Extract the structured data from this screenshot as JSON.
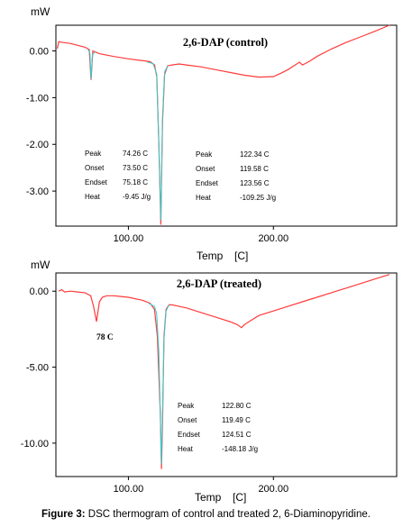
{
  "figure": {
    "caption_label": "Figure 3:",
    "caption_text": " DSC thermogram of control and treated 2, 6-Diaminopyridine.",
    "colors": {
      "trace": "#ff3b3b",
      "baseline": "#33cccc",
      "axis": "#000000"
    }
  },
  "chart_data": [
    {
      "type": "line",
      "title": "2,6-DAP (control)",
      "xlabel": "Temp",
      "xunit": "[C]",
      "ylabel": "mW",
      "xlim": [
        50,
        285
      ],
      "ylim": [
        -3.75,
        0.55
      ],
      "xticks": [
        {
          "value": 100,
          "label": "100.00"
        },
        {
          "value": 200,
          "label": "200.00"
        }
      ],
      "yticks": [
        {
          "value": 0,
          "label": "0.00"
        },
        {
          "value": -1,
          "label": "-1.00"
        },
        {
          "value": -2,
          "label": "-2.00"
        },
        {
          "value": -3,
          "label": "-3.00"
        }
      ],
      "series": [
        {
          "role": "trace",
          "x": [
            51,
            52,
            55,
            60,
            65,
            70,
            73,
            74.26,
            75.5,
            77,
            80,
            90,
            100,
            110,
            115,
            118,
            119.58,
            121,
            122.34,
            123.56,
            125,
            127,
            130,
            135,
            140,
            150,
            160,
            170,
            180,
            190,
            200,
            205,
            210,
            215,
            218,
            220,
            222,
            225,
            230,
            240,
            250,
            260,
            270,
            280
          ],
          "y": [
            0.05,
            0.2,
            0.18,
            0.16,
            0.12,
            0.08,
            0.03,
            -0.62,
            0.0,
            -0.02,
            -0.06,
            -0.12,
            -0.17,
            -0.21,
            -0.23,
            -0.3,
            -0.55,
            -2.0,
            -3.72,
            -1.5,
            -0.5,
            -0.32,
            -0.3,
            -0.28,
            -0.3,
            -0.34,
            -0.4,
            -0.46,
            -0.52,
            -0.56,
            -0.55,
            -0.48,
            -0.4,
            -0.3,
            -0.24,
            -0.3,
            -0.27,
            -0.22,
            -0.12,
            0.04,
            0.18,
            0.3,
            0.42,
            0.55
          ]
        },
        {
          "role": "baseline",
          "x": [
            72,
            73.5,
            74.26,
            75.18,
            77
          ],
          "y": [
            0.04,
            -0.05,
            -0.6,
            -0.08,
            -0.02
          ]
        },
        {
          "role": "baseline",
          "x": [
            113,
            117,
            119.58,
            121,
            122.34,
            123.56,
            125,
            127
          ],
          "y": [
            -0.24,
            -0.27,
            -0.5,
            -2.0,
            -3.62,
            -1.4,
            -0.45,
            -0.32
          ]
        }
      ],
      "annotations": [
        {
          "x": 74.26,
          "labels": [
            "Peak",
            "Onset",
            "Endset",
            "Heat"
          ],
          "values": [
            "74.26  C",
            "73.50  C",
            "75.18  C",
            "-9.45  J/g"
          ]
        },
        {
          "x": 122.34,
          "labels": [
            "Peak",
            "Onset",
            "Endset",
            "Heat"
          ],
          "values": [
            "122.34  C",
            "119.58  C",
            "123.56  C",
            "-109.25  J/g"
          ]
        }
      ]
    },
    {
      "type": "line",
      "title": "2,6-DAP (treated)",
      "xlabel": "Temp",
      "xunit": "[C]",
      "ylabel": "mW",
      "xlim": [
        50,
        285
      ],
      "ylim": [
        -12.2,
        1.2
      ],
      "xticks": [
        {
          "value": 100,
          "label": "100.00"
        },
        {
          "value": 200,
          "label": "200.00"
        }
      ],
      "yticks": [
        {
          "value": 0,
          "label": "0.00"
        },
        {
          "value": -5,
          "label": "-5.00"
        },
        {
          "value": -10,
          "label": "-10.00"
        }
      ],
      "series": [
        {
          "role": "trace",
          "x": [
            52,
            54,
            56,
            60,
            65,
            70,
            74,
            76,
            78,
            80,
            82,
            85,
            90,
            100,
            110,
            115,
            118,
            120,
            122,
            122.8,
            123.5,
            124.51,
            126,
            128,
            130,
            135,
            140,
            150,
            160,
            170,
            175,
            178,
            180,
            185,
            190,
            200,
            210,
            220,
            230,
            240,
            250,
            260,
            270,
            280
          ],
          "y": [
            0.0,
            0.1,
            -0.05,
            0.0,
            -0.05,
            -0.1,
            -0.3,
            -1.0,
            -2.0,
            -0.7,
            -0.4,
            -0.3,
            -0.3,
            -0.4,
            -0.6,
            -0.8,
            -1.2,
            -3.0,
            -8.0,
            -11.7,
            -9.0,
            -3.0,
            -1.2,
            -0.9,
            -0.9,
            -1.0,
            -1.1,
            -1.4,
            -1.7,
            -2.0,
            -2.2,
            -2.4,
            -2.2,
            -1.9,
            -1.6,
            -1.3,
            -1.0,
            -0.7,
            -0.4,
            -0.1,
            0.2,
            0.5,
            0.8,
            1.1
          ]
        },
        {
          "role": "baseline",
          "x": [
            114,
            118,
            119.49,
            121,
            122.8,
            124.51,
            126,
            128
          ],
          "y": [
            -0.8,
            -1.0,
            -1.5,
            -4.0,
            -11.4,
            -3.2,
            -1.3,
            -0.9
          ]
        }
      ],
      "annotations": [
        {
          "x": 78,
          "text": "78 C"
        },
        {
          "x": 122.8,
          "labels": [
            "Peak",
            "Onset",
            "Endset",
            "Heat"
          ],
          "values": [
            "122.80  C",
            "119.49  C",
            "124.51  C",
            "-148.18  J/g"
          ]
        }
      ]
    }
  ]
}
